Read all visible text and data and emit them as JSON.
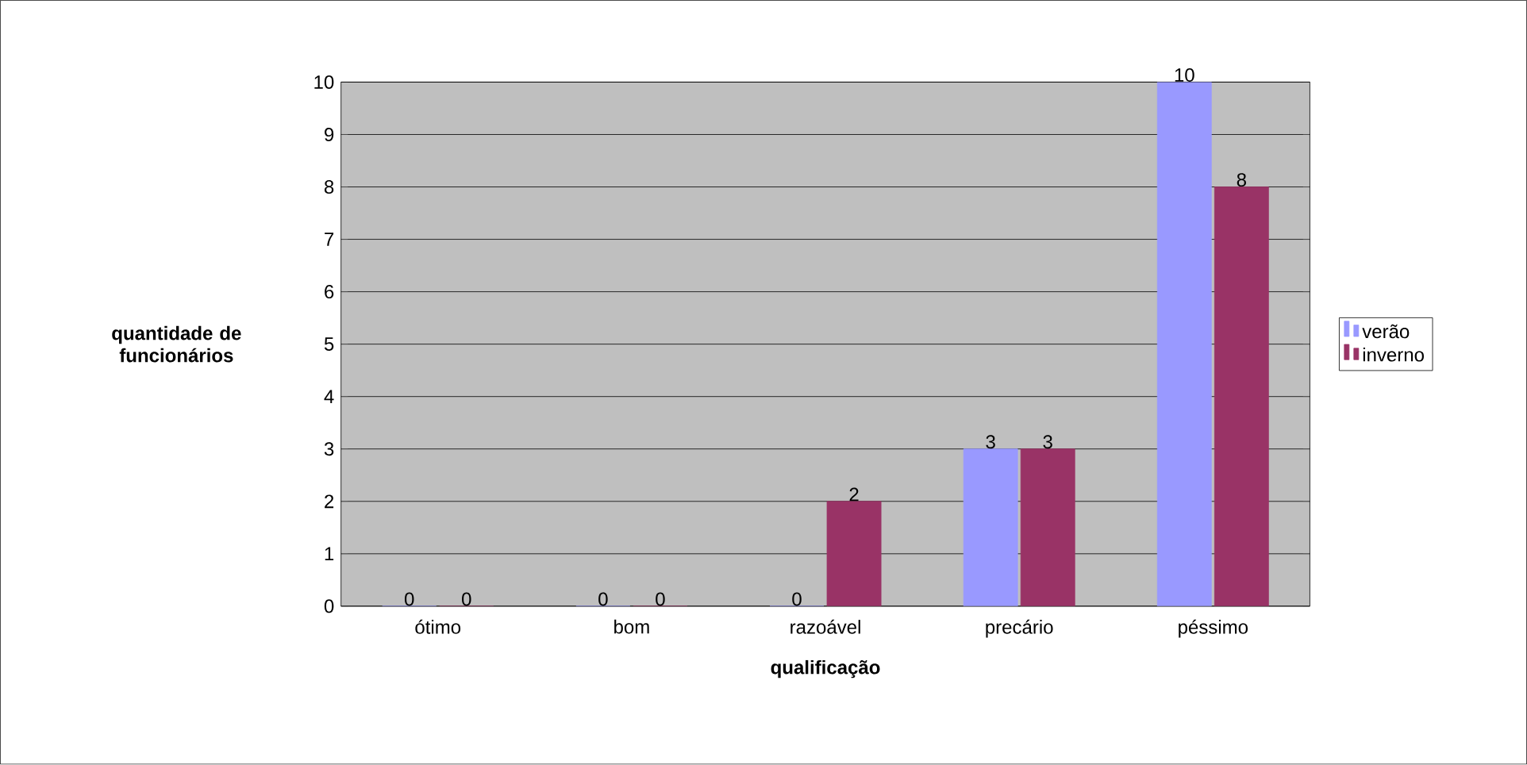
{
  "chart_data": {
    "type": "bar",
    "xlabel": "qualificação",
    "ylabel": "quantidade de funcionários",
    "categories": [
      "ótimo",
      "bom",
      "razoável",
      "precário",
      "péssimo"
    ],
    "series": [
      {
        "name": "verão",
        "color": "#9999ff",
        "values": [
          0,
          0,
          0,
          3,
          10
        ]
      },
      {
        "name": "inverno",
        "color": "#993366",
        "values": [
          0,
          0,
          2,
          3,
          8
        ]
      }
    ],
    "ylim": [
      0,
      10
    ],
    "yticks": [
      0,
      1,
      2,
      3,
      4,
      5,
      6,
      7,
      8,
      9,
      10
    ],
    "grid": "y",
    "legend": "right",
    "data_labels": true
  }
}
